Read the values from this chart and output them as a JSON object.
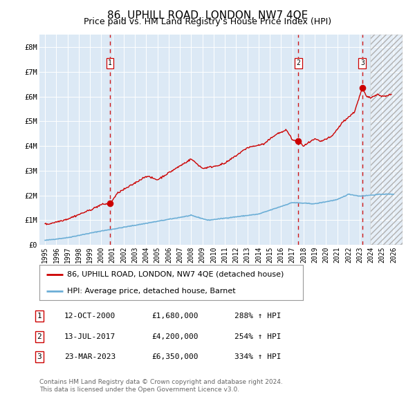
{
  "title": "86, UPHILL ROAD, LONDON, NW7 4QE",
  "subtitle": "Price paid vs. HM Land Registry's House Price Index (HPI)",
  "title_fontsize": 11,
  "subtitle_fontsize": 9,
  "background_color": "#ffffff",
  "plot_bg_color": "#dce9f5",
  "grid_color": "#ffffff",
  "ylim": [
    0,
    8500000
  ],
  "yticks": [
    0,
    1000000,
    2000000,
    3000000,
    4000000,
    5000000,
    6000000,
    7000000,
    8000000
  ],
  "ytick_labels": [
    "£0",
    "£1M",
    "£2M",
    "£3M",
    "£4M",
    "£5M",
    "£6M",
    "£7M",
    "£8M"
  ],
  "xlim_start": 1994.5,
  "xlim_end": 2026.8,
  "xticks": [
    1995,
    1996,
    1997,
    1998,
    1999,
    2000,
    2001,
    2002,
    2003,
    2004,
    2005,
    2006,
    2007,
    2008,
    2009,
    2010,
    2011,
    2012,
    2013,
    2014,
    2015,
    2016,
    2017,
    2018,
    2019,
    2020,
    2021,
    2022,
    2023,
    2024,
    2025,
    2026
  ],
  "hpi_line_color": "#6baed6",
  "price_line_color": "#cc0000",
  "sale_marker_color": "#cc0000",
  "dashed_vline_color": "#cc0000",
  "sales": [
    {
      "num": 1,
      "date": "12-OCT-2000",
      "year": 2000.78,
      "price": 1680000,
      "hpi_pct": "288%",
      "label": "1"
    },
    {
      "num": 2,
      "date": "13-JUL-2017",
      "year": 2017.53,
      "price": 4200000,
      "hpi_pct": "254%",
      "label": "2"
    },
    {
      "num": 3,
      "date": "23-MAR-2023",
      "year": 2023.22,
      "price": 6350000,
      "hpi_pct": "334%",
      "label": "3"
    }
  ],
  "legend_line1": "86, UPHILL ROAD, LONDON, NW7 4QE (detached house)",
  "legend_line2": "HPI: Average price, detached house, Barnet",
  "footnote1": "Contains HM Land Registry data © Crown copyright and database right 2024.",
  "footnote2": "This data is licensed under the Open Government Licence v3.0.",
  "table_rows": [
    {
      "num": "1",
      "date": "12-OCT-2000",
      "price": "£1,680,000",
      "hpi": "288% ↑ HPI"
    },
    {
      "num": "2",
      "date": "13-JUL-2017",
      "price": "£4,200,000",
      "hpi": "254% ↑ HPI"
    },
    {
      "num": "3",
      "date": "23-MAR-2023",
      "price": "£6,350,000",
      "hpi": "334% ↑ HPI"
    }
  ],
  "hatch_region_start": 2024.0
}
